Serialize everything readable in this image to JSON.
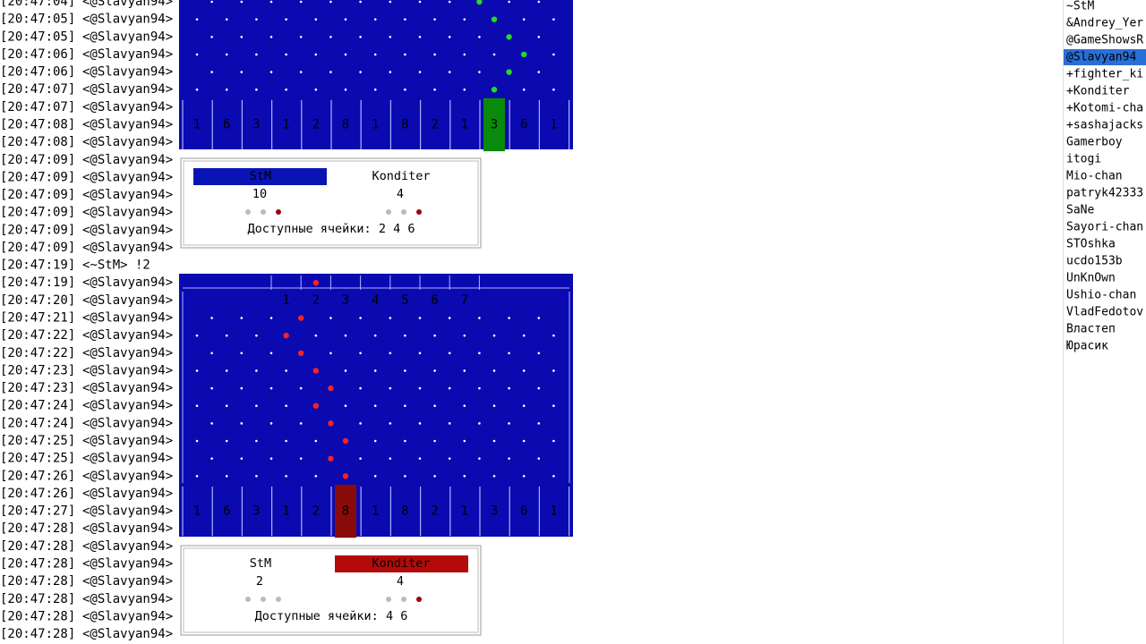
{
  "chat": [
    {
      "time": "[20:47:04]",
      "nick": "<@Slavyan94>"
    },
    {
      "time": "[20:47:05]",
      "nick": "<@Slavyan94>"
    },
    {
      "time": "[20:47:05]",
      "nick": "<@Slavyan94>"
    },
    {
      "time": "[20:47:06]",
      "nick": "<@Slavyan94>"
    },
    {
      "time": "[20:47:06]",
      "nick": "<@Slavyan94>"
    },
    {
      "time": "[20:47:07]",
      "nick": "<@Slavyan94>"
    },
    {
      "time": "[20:47:07]",
      "nick": "<@Slavyan94>"
    },
    {
      "time": "[20:47:08]",
      "nick": "<@Slavyan94>"
    },
    {
      "time": "[20:47:08]",
      "nick": "<@Slavyan94>"
    },
    {
      "time": "[20:47:09]",
      "nick": "<@Slavyan94>"
    },
    {
      "time": "[20:47:09]",
      "nick": "<@Slavyan94>"
    },
    {
      "time": "[20:47:09]",
      "nick": "<@Slavyan94>"
    },
    {
      "time": "[20:47:09]",
      "nick": "<@Slavyan94>"
    },
    {
      "time": "[20:47:09]",
      "nick": "<@Slavyan94>"
    },
    {
      "time": "[20:47:09]",
      "nick": "<@Slavyan94>"
    },
    {
      "time": "[20:47:19]",
      "nick": "<~StM>",
      "text": "!2"
    },
    {
      "time": "[20:47:19]",
      "nick": "<@Slavyan94>"
    },
    {
      "time": "[20:47:20]",
      "nick": "<@Slavyan94>"
    },
    {
      "time": "[20:47:21]",
      "nick": "<@Slavyan94>"
    },
    {
      "time": "[20:47:22]",
      "nick": "<@Slavyan94>"
    },
    {
      "time": "[20:47:22]",
      "nick": "<@Slavyan94>"
    },
    {
      "time": "[20:47:23]",
      "nick": "<@Slavyan94>"
    },
    {
      "time": "[20:47:23]",
      "nick": "<@Slavyan94>"
    },
    {
      "time": "[20:47:24]",
      "nick": "<@Slavyan94>"
    },
    {
      "time": "[20:47:24]",
      "nick": "<@Slavyan94>"
    },
    {
      "time": "[20:47:25]",
      "nick": "<@Slavyan94>"
    },
    {
      "time": "[20:47:25]",
      "nick": "<@Slavyan94>"
    },
    {
      "time": "[20:47:26]",
      "nick": "<@Slavyan94>"
    },
    {
      "time": "[20:47:26]",
      "nick": "<@Slavyan94>"
    },
    {
      "time": "[20:47:27]",
      "nick": "<@Slavyan94>"
    },
    {
      "time": "[20:47:28]",
      "nick": "<@Slavyan94>"
    },
    {
      "time": "[20:47:28]",
      "nick": "<@Slavyan94>"
    },
    {
      "time": "[20:47:28]",
      "nick": "<@Slavyan94>"
    },
    {
      "time": "[20:47:28]",
      "nick": "<@Slavyan94>"
    },
    {
      "time": "[20:47:28]",
      "nick": "<@Slavyan94>"
    },
    {
      "time": "[20:47:28]",
      "nick": "<@Slavyan94>"
    },
    {
      "time": "[20:47:28]",
      "nick": "<@Slavyan94>"
    }
  ],
  "board_1": {
    "slots": [
      1,
      6,
      3,
      1,
      2,
      8,
      1,
      8,
      2,
      1,
      3,
      6,
      1
    ]
  },
  "score_1": {
    "player_1": "StM",
    "player_2": "Konditer",
    "score_1": 10,
    "score_2": 4,
    "label": "Доступные ячейки:",
    "cells": [
      2,
      4,
      6
    ]
  },
  "board_2": {
    "columns": [
      1,
      2,
      3,
      4,
      5,
      6,
      7
    ],
    "slots": [
      1,
      6,
      3,
      1,
      2,
      8,
      1,
      8,
      2,
      1,
      3,
      6,
      1
    ]
  },
  "score_2": {
    "player_1": "StM",
    "player_2": "Konditer",
    "score_1": 2,
    "score_2": 4,
    "label": "Доступные ячейки:",
    "cells": [
      4,
      6
    ]
  },
  "users": [
    "~StM",
    "&Andrey_Yer",
    "@GameShowsR",
    "@Slavyan94",
    "+fighter_ki",
    "+Konditer",
    "+Kotomi-cha",
    "+sashajacks",
    "Gamerboy",
    "itogi",
    "Mio-chan",
    "patryk42333",
    "SaNe",
    "Sayori-chan",
    "STOshka",
    "ucdo153b",
    "UnKnOwn",
    "Ushio-chan",
    "VladFedotov",
    "Властеп",
    "Юрасик"
  ]
}
